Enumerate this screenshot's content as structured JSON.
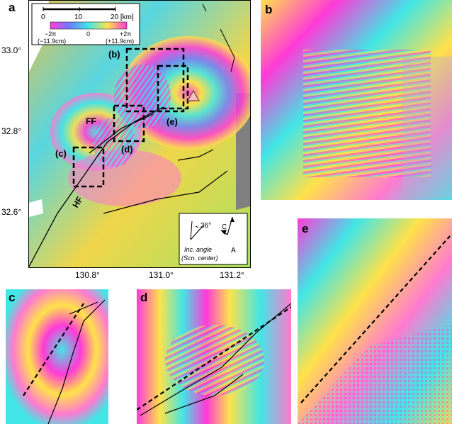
{
  "panels": {
    "a": "a",
    "b": "b",
    "c": "c",
    "d": "d",
    "e": "e"
  },
  "map_a": {
    "lat_ticks": [
      "33.0°",
      "32.8°",
      "32.6°"
    ],
    "lon_ticks": [
      "130.8°",
      "131.0°",
      "131.2°"
    ],
    "scale_bar": {
      "labels": [
        "0",
        "10",
        "20 [km]"
      ]
    },
    "colorbar": {
      "left_top": "−2π",
      "left_bottom": "(−11.9cm)",
      "center": "0",
      "right_top": "+2π",
      "right_bottom": "(+11.9cm)"
    },
    "boxes": {
      "b": "(b)",
      "c": "(c)",
      "d": "(d)",
      "e": "(e)"
    },
    "fault_labels": {
      "ff": "FF",
      "hf": "HF"
    },
    "geometry": {
      "incidence": "36°",
      "c_label": "C",
      "a_label": "A",
      "line1": "Inc. angle",
      "line2": "(Scn. center)"
    }
  },
  "colors": {
    "fringe_palette": [
      "#ff3ad8",
      "#ffe24a",
      "#42e6e6",
      "#6d7cff",
      "#ff7ad0"
    ],
    "no_data": "#808080",
    "box_stroke": "#000000",
    "volcano_marker": "#f2c2c2"
  }
}
